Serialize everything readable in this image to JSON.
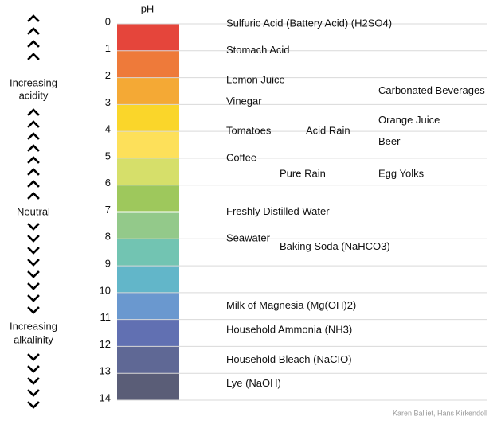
{
  "chart_data": {
    "type": "ph-scale",
    "title": "pH",
    "ylim": [
      0,
      14
    ],
    "yticks": [
      0,
      1,
      2,
      3,
      4,
      5,
      6,
      7,
      8,
      9,
      10,
      11,
      12,
      13,
      14
    ],
    "band_colors": [
      "#e5453b",
      "#ee7a3a",
      "#f4a935",
      "#fad62a",
      "#fde05a",
      "#d6df6a",
      "#9ec85c",
      "#93c98a",
      "#72c4b2",
      "#62b6c9",
      "#6a98cf",
      "#6170b2",
      "#5f6895",
      "#5a5d77"
    ],
    "grid": true,
    "items": [
      {
        "name": "Sulfuric Acid (Battery Acid) (H2SO4)",
        "value": 0
      },
      {
        "name": "Stomach Acid",
        "value": 1
      },
      {
        "name": "Lemon Juice",
        "value": 2.1
      },
      {
        "name": "Carbonated Beverages",
        "value": 2.5
      },
      {
        "name": "Vinegar",
        "value": 2.9
      },
      {
        "name": "Orange Juice",
        "value": 3.6
      },
      {
        "name": "Tomatoes",
        "value": 4
      },
      {
        "name": "Acid Rain",
        "value": 4
      },
      {
        "name": "Beer",
        "value": 4.4
      },
      {
        "name": "Coffee",
        "value": 5
      },
      {
        "name": "Pure Rain",
        "value": 5.6
      },
      {
        "name": "Egg Yolks",
        "value": 5.6
      },
      {
        "name": "Freshly Distilled Water",
        "value": 7
      },
      {
        "name": "Seawater",
        "value": 8
      },
      {
        "name": "Baking Soda (NaHCO3)",
        "value": 8.3
      },
      {
        "name": "Milk of Magnesia (Mg(OH)2)",
        "value": 10.5
      },
      {
        "name": "Household Ammonia (NH3)",
        "value": 11.4
      },
      {
        "name": "Household Bleach (NaCIO)",
        "value": 12.5
      },
      {
        "name": "Lye (NaOH)",
        "value": 13.4
      }
    ],
    "side_labels": {
      "acidity": [
        "Increasing",
        "acidity"
      ],
      "neutral": "Neutral",
      "alkalinity": [
        "Increasing",
        "alkalinity"
      ]
    },
    "credit": "Karen Balliet, Hans Kirkendoll"
  }
}
